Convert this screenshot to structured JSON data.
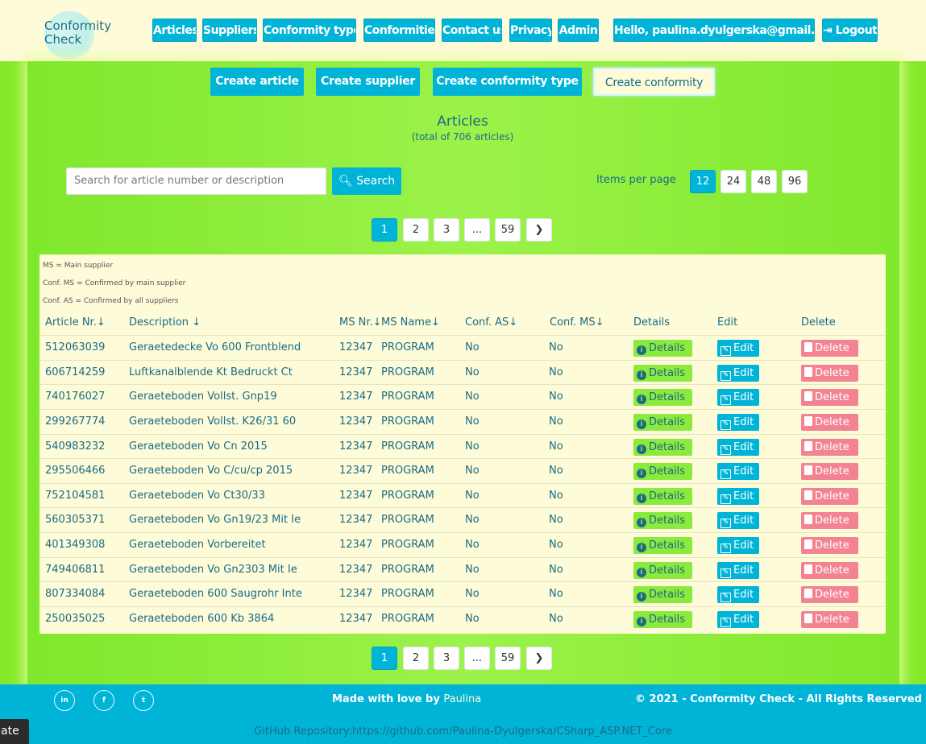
{
  "logo": {
    "line1": "Conformity",
    "line2": "Check"
  },
  "nav": [
    {
      "label": "Articles",
      "name": "nav-articles"
    },
    {
      "label": "Suppliers",
      "name": "nav-suppliers"
    },
    {
      "label": "Conformity types",
      "name": "nav-conformity-types"
    },
    {
      "label": "Conformities",
      "name": "nav-conformities"
    },
    {
      "label": "Contact us",
      "name": "nav-contact-us"
    },
    {
      "label": "Privacy",
      "name": "nav-privacy"
    },
    {
      "label": "Admin",
      "name": "nav-admin"
    }
  ],
  "user": {
    "greeting": "Hello, paulina.dyulgerska@gmail.com!",
    "logout": "Logout"
  },
  "create_buttons": [
    "Create article",
    "Create supplier",
    "Create conformity type",
    "Create conformity"
  ],
  "page": {
    "title": "Articles",
    "subtitle": "(total of 706 articles)"
  },
  "search": {
    "placeholder": "Search for article number or description",
    "button": "Search"
  },
  "items_per_page": {
    "label": "Items per page",
    "options": [
      "12",
      "24",
      "48",
      "96"
    ],
    "selected": "12"
  },
  "pagination": {
    "pages": [
      "1",
      "2",
      "3",
      "...",
      "59"
    ],
    "current": "1",
    "next": "❯"
  },
  "legend": [
    "MS = Main supplier",
    "Conf. MS = Confirmed by main supplier",
    "Conf. AS = Confirmed by all suppliers"
  ],
  "table": {
    "headers": {
      "article_nr": "Article Nr.",
      "description": "Description",
      "ms_nr": "MS Nr.",
      "ms_name": "MS Name",
      "conf_as": "Conf. AS",
      "conf_ms": "Conf. MS",
      "details": "Details",
      "edit": "Edit",
      "delete": "Delete"
    },
    "sort_arrow": "↓",
    "action_labels": {
      "details": "Details",
      "edit": "Edit",
      "delete": "Delete"
    },
    "rows": [
      {
        "article_nr": "512063039",
        "description": "Geraetedecke Vo 600 Frontblend",
        "ms_nr": "12347",
        "ms_name": "PROGRAM",
        "conf_as": "No",
        "conf_ms": "No"
      },
      {
        "article_nr": "606714259",
        "description": "Luftkanalblende Kt Bedruckt Ct",
        "ms_nr": "12347",
        "ms_name": "PROGRAM",
        "conf_as": "No",
        "conf_ms": "No"
      },
      {
        "article_nr": "740176027",
        "description": "Geraeteboden Vollst. Gnp19",
        "ms_nr": "12347",
        "ms_name": "PROGRAM",
        "conf_as": "No",
        "conf_ms": "No"
      },
      {
        "article_nr": "299267774",
        "description": "Geraeteboden Vollst. K26/31 60",
        "ms_nr": "12347",
        "ms_name": "PROGRAM",
        "conf_as": "No",
        "conf_ms": "No"
      },
      {
        "article_nr": "540983232",
        "description": "Geraeteboden Vo Cn 2015",
        "ms_nr": "12347",
        "ms_name": "PROGRAM",
        "conf_as": "No",
        "conf_ms": "No"
      },
      {
        "article_nr": "295506466",
        "description": "Geraeteboden Vo C/cu/cp 2015",
        "ms_nr": "12347",
        "ms_name": "PROGRAM",
        "conf_as": "No",
        "conf_ms": "No"
      },
      {
        "article_nr": "752104581",
        "description": "Geraeteboden Vo Ct30/33",
        "ms_nr": "12347",
        "ms_name": "PROGRAM",
        "conf_as": "No",
        "conf_ms": "No"
      },
      {
        "article_nr": "560305371",
        "description": "Geraeteboden Vo Gn19/23 Mit Ie",
        "ms_nr": "12347",
        "ms_name": "PROGRAM",
        "conf_as": "No",
        "conf_ms": "No"
      },
      {
        "article_nr": "401349308",
        "description": "Geraeteboden Vorbereitet",
        "ms_nr": "12347",
        "ms_name": "PROGRAM",
        "conf_as": "No",
        "conf_ms": "No"
      },
      {
        "article_nr": "749406811",
        "description": "Geraeteboden Vo Gn2303 Mit Ie",
        "ms_nr": "12347",
        "ms_name": "PROGRAM",
        "conf_as": "No",
        "conf_ms": "No"
      },
      {
        "article_nr": "807334084",
        "description": "Geraeteboden 600 Saugrohr Inte",
        "ms_nr": "12347",
        "ms_name": "PROGRAM",
        "conf_as": "No",
        "conf_ms": "No"
      },
      {
        "article_nr": "250035025",
        "description": "Geraeteboden 600 Kb 3864",
        "ms_nr": "12347",
        "ms_name": "PROGRAM",
        "conf_as": "No",
        "conf_ms": "No"
      }
    ]
  },
  "footer": {
    "social": [
      {
        "icon": "linkedin-icon",
        "glyph": "in"
      },
      {
        "icon": "facebook-icon",
        "glyph": "f"
      },
      {
        "icon": "twitter-icon",
        "glyph": "t"
      }
    ],
    "made_with_love": "Made with love by",
    "author": "Paulina",
    "copyright": "© 2021 - Conformity Check - All Rights Reserved",
    "github": "GitHub Repository:https://github.com/Paulina-Dyulgerska/CSharp_ASP.NET_Core",
    "corner_text": "ate"
  },
  "colors": {
    "accent": "#00b4d8",
    "page_green": "#85ea2a",
    "cream": "#fdfbd8",
    "text_teal": "#1b6b86",
    "details_green": "#8cea3e",
    "delete_pink": "#f38392"
  }
}
